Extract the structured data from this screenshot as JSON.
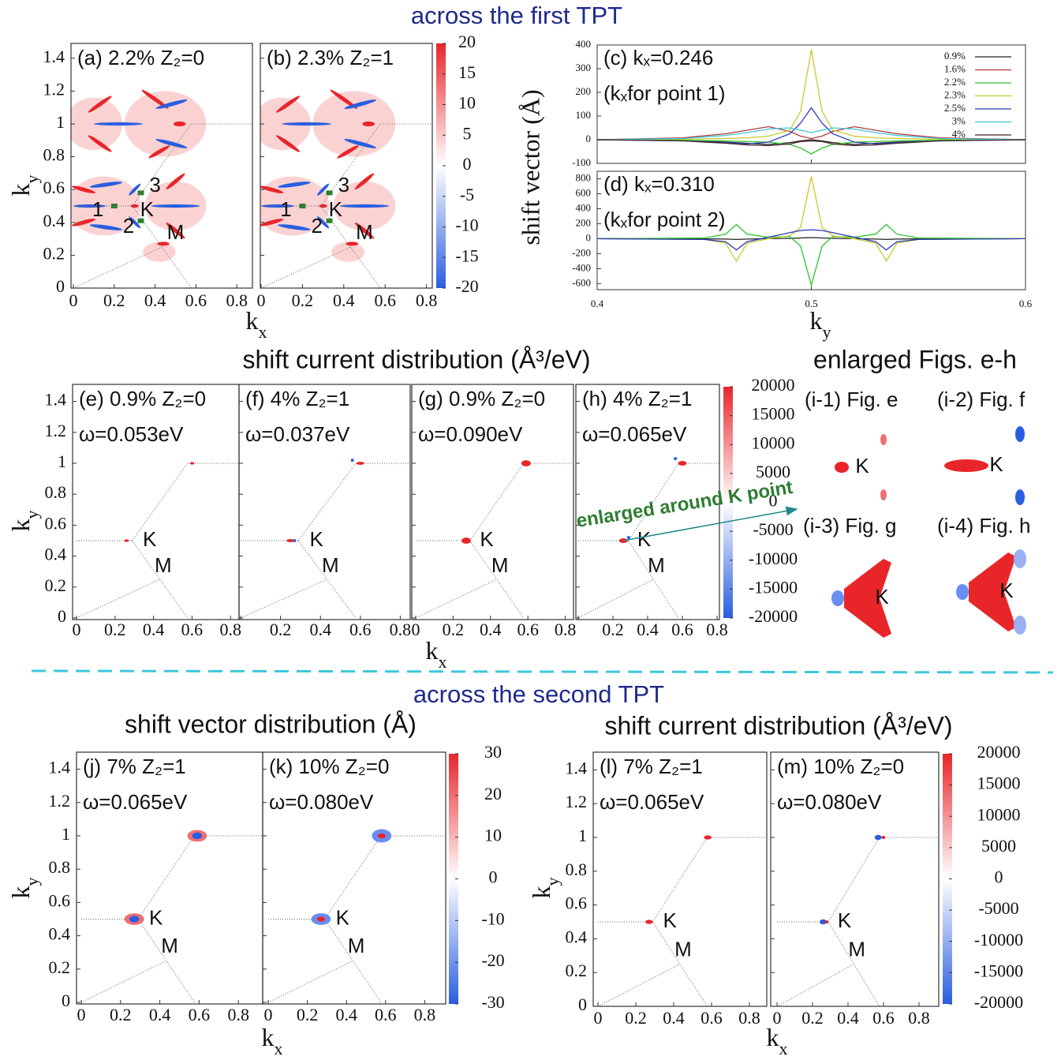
{
  "headings": {
    "first": "across the first TPT",
    "second": "across the second TPT"
  },
  "titles": {
    "current_top": "shift current distribution (Å³/eV)",
    "enlarged": "enlarged Figs. e-h",
    "vector_bottom": "shift vector distribution (Å)",
    "current_bottom": "shift current distribution (Å³/eV)"
  },
  "axis_labels": {
    "kx": {
      "base": "k",
      "sub": "x"
    },
    "ky": {
      "base": "k",
      "sub": "y"
    }
  },
  "map_xticks": [
    0,
    0.2,
    0.4,
    0.6,
    0.8
  ],
  "map_yticks": [
    0,
    0.2,
    0.4,
    0.6,
    0.8,
    1,
    1.2,
    1.4
  ],
  "colorbars": [
    {
      "lim": [
        -20,
        20
      ],
      "ticks": [
        20,
        15,
        10,
        5,
        0,
        -5,
        -10,
        -15,
        -20
      ]
    },
    {
      "lim": [
        -20000,
        20000
      ],
      "ticks": [
        20000,
        15000,
        10000,
        5000,
        0,
        -5000,
        -10000,
        -15000,
        -20000
      ]
    },
    {
      "lim": [
        -30,
        30
      ],
      "ticks": [
        30,
        20,
        10,
        0,
        -10,
        -20,
        -30
      ]
    },
    {
      "lim": [
        -20000,
        20000
      ],
      "ticks": [
        20000,
        15000,
        10000,
        5000,
        0,
        -5000,
        -10000,
        -15000,
        -20000
      ]
    }
  ],
  "panels": [
    {
      "label": "(a) 2.2% Z₂=0",
      "points": [
        "1",
        "K",
        "2",
        "3",
        "M"
      ]
    },
    {
      "label": "(b) 2.3% Z₂=1",
      "points": [
        "1",
        "K",
        "2",
        "3",
        "M"
      ]
    },
    {
      "label": "(e) 0.9% Z₂=0",
      "omega": "ω=0.053eV",
      "points": [
        "K",
        "M"
      ]
    },
    {
      "label": "(f) 4% Z₂=1",
      "omega": "ω=0.037eV",
      "points": [
        "K",
        "M"
      ]
    },
    {
      "label": "(g) 0.9% Z₂=0",
      "omega": "ω=0.090eV",
      "points": [
        "K",
        "M"
      ]
    },
    {
      "label": "(h) 4% Z₂=1",
      "omega": "ω=0.065eV",
      "points": [
        "K",
        "M"
      ]
    },
    {
      "label": "(j) 7% Z₂=1",
      "omega": "ω=0.065eV",
      "points": [
        "K",
        "M"
      ]
    },
    {
      "label": "(k)  10% Z₂=0",
      "omega": "ω=0.080eV",
      "points": [
        "K",
        "M"
      ]
    },
    {
      "label": "(l) 7% Z₂=1",
      "omega": "ω=0.065eV",
      "points": [
        "K",
        "M"
      ]
    },
    {
      "label": "(m)  10% Z₂=0",
      "omega": "ω=0.080eV",
      "points": [
        "K",
        "M"
      ]
    }
  ],
  "shift_vector_chart": {
    "type": "line",
    "y_label": "shift vector (Å)",
    "xlim": [
      0.4,
      0.6
    ],
    "xticks": [
      0.4,
      0.5,
      0.6
    ],
    "panels": [
      {
        "label": "(c) kₓ=0.246",
        "note": "(kₓfor point 1)",
        "ylim": [
          -100,
          400
        ],
        "yticks": [
          -100,
          0,
          100,
          200,
          300,
          400
        ],
        "x": [
          0.4,
          0.44,
          0.46,
          0.47,
          0.48,
          0.49,
          0.495,
          0.5,
          0.505,
          0.51,
          0.52,
          0.53,
          0.54,
          0.56,
          0.6
        ],
        "series": [
          {
            "name": "0.9%",
            "color": "#222222",
            "values": [
              0,
              -3,
              -10,
              -15,
              -20,
              -12,
              -5,
              0,
              -5,
              -12,
              -20,
              -15,
              -10,
              -3,
              0
            ]
          },
          {
            "name": "1.6%",
            "color": "#b03a3a",
            "values": [
              0,
              8,
              25,
              40,
              55,
              35,
              15,
              5,
              15,
              35,
              55,
              40,
              25,
              8,
              0
            ]
          },
          {
            "name": "2.2%",
            "color": "#2ec42e",
            "values": [
              0,
              -2,
              -5,
              -8,
              -10,
              -20,
              -35,
              -60,
              -35,
              -20,
              -10,
              -8,
              -5,
              -2,
              0
            ]
          },
          {
            "name": "2.3%",
            "color": "#c8c82a",
            "values": [
              0,
              2,
              5,
              8,
              15,
              40,
              120,
              380,
              120,
              40,
              15,
              8,
              5,
              2,
              0
            ]
          },
          {
            "name": "2.5%",
            "color": "#2a3cb8",
            "values": [
              0,
              -5,
              -12,
              -18,
              -10,
              25,
              70,
              135,
              70,
              25,
              -10,
              -18,
              -12,
              -5,
              0
            ]
          },
          {
            "name": "3%",
            "color": "#3cc8dc",
            "values": [
              0,
              5,
              18,
              30,
              45,
              50,
              40,
              30,
              40,
              50,
              45,
              30,
              18,
              5,
              0
            ]
          },
          {
            "name": "4%",
            "color": "#4a2626",
            "values": [
              0,
              -5,
              -15,
              -22,
              -25,
              -18,
              -8,
              -5,
              -8,
              -18,
              -25,
              -22,
              -15,
              -5,
              0
            ]
          }
        ]
      },
      {
        "label": "(d) kₓ=0.310",
        "note": "(kₓfor point 2)",
        "ylim": [
          -680,
          900
        ],
        "yticks": [
          -600,
          -400,
          -200,
          0,
          200,
          400,
          600,
          800
        ],
        "x": [
          0.4,
          0.45,
          0.46,
          0.465,
          0.47,
          0.48,
          0.49,
          0.495,
          0.5,
          0.505,
          0.51,
          0.52,
          0.53,
          0.535,
          0.54,
          0.55,
          0.6
        ],
        "series": [
          {
            "color": "#222222",
            "values": [
              0,
              -2,
              -5,
              -10,
              -5,
              0,
              5,
              10,
              15,
              10,
              5,
              0,
              -5,
              -10,
              -5,
              -2,
              0
            ]
          },
          {
            "color": "#2ec42e",
            "values": [
              0,
              10,
              60,
              190,
              60,
              20,
              30,
              -100,
              -620,
              -100,
              30,
              20,
              60,
              190,
              60,
              10,
              0
            ]
          },
          {
            "color": "#c8c82a",
            "values": [
              0,
              -10,
              -60,
              -300,
              -60,
              0,
              40,
              150,
              830,
              150,
              40,
              0,
              -60,
              -300,
              -60,
              -10,
              0
            ]
          },
          {
            "color": "#2a3cb8",
            "values": [
              0,
              -10,
              -40,
              -150,
              -40,
              20,
              80,
              110,
              120,
              110,
              80,
              20,
              -40,
              -150,
              -40,
              -10,
              0
            ]
          }
        ]
      }
    ]
  },
  "enlarged": {
    "arrow_label": "enlarged around K point",
    "insets": [
      {
        "label": "(i-1) Fig. e",
        "point": "K"
      },
      {
        "label": "(i-2) Fig. f",
        "point": "K"
      },
      {
        "label": "(i-3)  Fig. g",
        "point": "K"
      },
      {
        "label": "(i-4) Fig. h",
        "point": "K"
      }
    ]
  }
}
